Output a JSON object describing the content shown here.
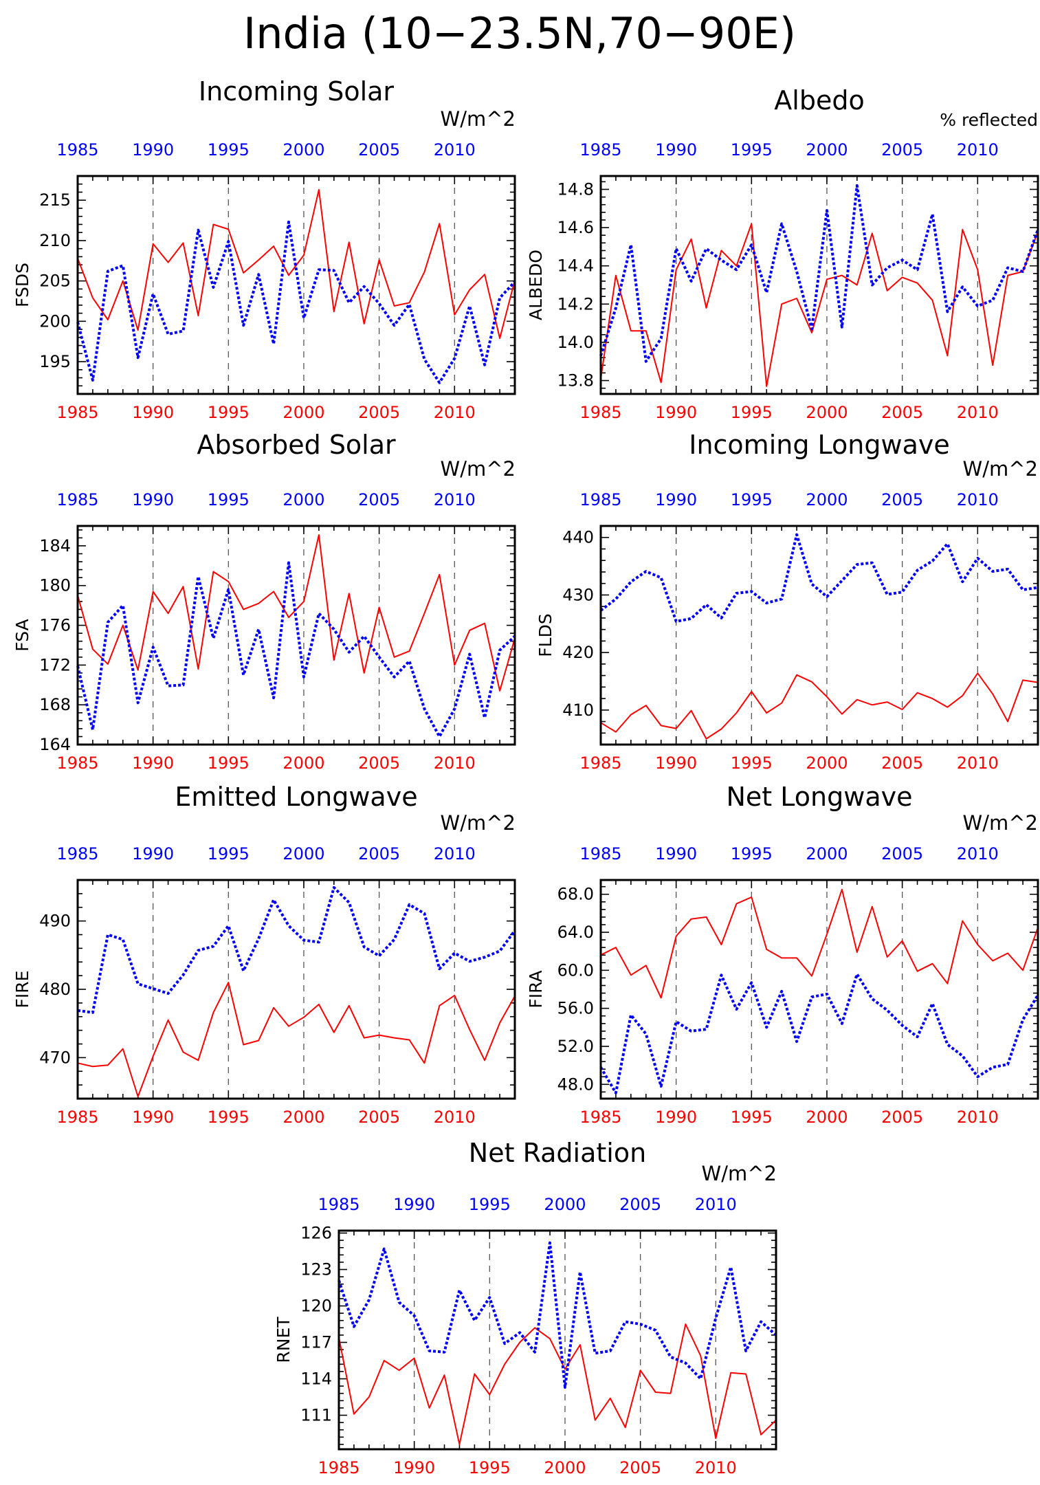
{
  "title": "India (10−23.5N,70−90E)",
  "colors": {
    "red": "#ff0000",
    "blue": "#0000ff",
    "black": "#000000",
    "grid": "#555555"
  },
  "chart_data": [
    {
      "type": "line",
      "title": "Incoming Solar",
      "ylabel": "FSDS",
      "units": "W/m^2",
      "x": [
        1985,
        1986,
        1987,
        1988,
        1989,
        1990,
        1991,
        1992,
        1993,
        1994,
        1995,
        1996,
        1997,
        1998,
        1999,
        2000,
        2001,
        2002,
        2003,
        2004,
        2005,
        2006,
        2007,
        2008,
        2009,
        2010,
        2011,
        2012,
        2013,
        2014
      ],
      "xlim": [
        1985,
        2014
      ],
      "ylim": [
        191,
        218
      ],
      "yticks": [
        195,
        200,
        205,
        210,
        215
      ],
      "ytick_labels": [
        "195",
        "200",
        "205",
        "210",
        "215"
      ],
      "xticks": [
        1985,
        1990,
        1995,
        2000,
        2005,
        2010
      ],
      "xtick_labels": [
        "1985",
        "1990",
        "1995",
        "2000",
        "2005",
        "2010"
      ],
      "series": [
        {
          "color": "red",
          "style": "solid",
          "values": [
            207.8,
            202.9,
            200.2,
            205.0,
            198.9,
            209.6,
            207.3,
            209.7,
            200.7,
            212.0,
            211.4,
            206.0,
            207.6,
            209.3,
            205.7,
            208.2,
            216.3,
            201.2,
            209.8,
            199.7,
            207.6,
            201.9,
            202.3,
            206.1,
            212.1,
            200.8,
            203.9,
            205.8,
            197.9,
            205.1
          ]
        },
        {
          "color": "blue",
          "style": "dotted",
          "values": [
            199.9,
            192.7,
            206.2,
            206.9,
            195.5,
            203.4,
            198.4,
            198.8,
            211.3,
            204.2,
            209.9,
            199.5,
            205.8,
            197.2,
            212.3,
            200.4,
            206.4,
            206.3,
            202.3,
            204.3,
            202.2,
            199.5,
            202.1,
            195.3,
            192.4,
            195.4,
            201.9,
            194.6,
            202.9,
            204.9
          ]
        }
      ]
    },
    {
      "type": "line",
      "title": "Albedo",
      "ylabel": "ALBEDO",
      "units": "% reflected",
      "x": [
        1985,
        1986,
        1987,
        1988,
        1989,
        1990,
        1991,
        1992,
        1993,
        1994,
        1995,
        1996,
        1997,
        1998,
        1999,
        2000,
        2001,
        2002,
        2003,
        2004,
        2005,
        2006,
        2007,
        2008,
        2009,
        2010,
        2011,
        2012,
        2013,
        2014
      ],
      "xlim": [
        1985,
        2014
      ],
      "ylim": [
        13.73,
        14.87
      ],
      "yticks": [
        13.8,
        14.0,
        14.2,
        14.4,
        14.6,
        14.8
      ],
      "ytick_labels": [
        "13.8",
        "14.0",
        "14.2",
        "14.4",
        "14.6",
        "14.8"
      ],
      "xticks": [
        1985,
        1990,
        1995,
        2000,
        2005,
        2010
      ],
      "xtick_labels": [
        "1985",
        "1990",
        "1995",
        "2000",
        "2005",
        "2010"
      ],
      "series": [
        {
          "color": "red",
          "style": "solid",
          "values": [
            13.81,
            14.35,
            14.06,
            14.06,
            13.79,
            14.38,
            14.54,
            14.18,
            14.48,
            14.4,
            14.62,
            13.77,
            14.2,
            14.23,
            14.05,
            14.33,
            14.35,
            14.3,
            14.57,
            14.27,
            14.34,
            14.31,
            14.22,
            13.93,
            14.59,
            14.38,
            13.88,
            14.35,
            14.37,
            14.58
          ]
        },
        {
          "color": "blue",
          "style": "dotted",
          "values": [
            13.93,
            14.18,
            14.51,
            13.9,
            14.02,
            14.49,
            14.32,
            14.49,
            14.43,
            14.38,
            14.51,
            14.26,
            14.62,
            14.37,
            14.07,
            14.69,
            14.08,
            14.82,
            14.3,
            14.39,
            14.43,
            14.38,
            14.67,
            14.16,
            14.29,
            14.19,
            14.22,
            14.39,
            14.37,
            14.59
          ]
        }
      ]
    },
    {
      "type": "line",
      "title": "Absorbed Solar",
      "ylabel": "FSA",
      "units": "W/m^2",
      "x": [
        1985,
        1986,
        1987,
        1988,
        1989,
        1990,
        1991,
        1992,
        1993,
        1994,
        1995,
        1996,
        1997,
        1998,
        1999,
        2000,
        2001,
        2002,
        2003,
        2004,
        2005,
        2006,
        2007,
        2008,
        2009,
        2010,
        2011,
        2012,
        2013,
        2014
      ],
      "xlim": [
        1985,
        2014
      ],
      "ylim": [
        164,
        186
      ],
      "yticks": [
        164,
        168,
        172,
        176,
        180,
        184
      ],
      "ytick_labels": [
        "164",
        "168",
        "172",
        "176",
        "180",
        "184"
      ],
      "xticks": [
        1985,
        1990,
        1995,
        2000,
        2005,
        2010
      ],
      "xtick_labels": [
        "1985",
        "1990",
        "1995",
        "2000",
        "2005",
        "2010"
      ],
      "series": [
        {
          "color": "red",
          "style": "solid",
          "values": [
            179.0,
            173.6,
            172.1,
            176.0,
            171.5,
            179.4,
            177.2,
            179.9,
            171.6,
            181.4,
            180.4,
            177.6,
            178.2,
            179.4,
            176.8,
            178.4,
            185.1,
            172.5,
            179.2,
            171.2,
            177.8,
            172.8,
            173.4,
            177.2,
            181.1,
            172.0,
            175.5,
            176.2,
            169.4,
            174.7
          ]
        },
        {
          "color": "blue",
          "style": "dotted",
          "values": [
            171.9,
            165.5,
            176.3,
            178.0,
            168.2,
            173.8,
            169.9,
            170.0,
            180.9,
            174.7,
            179.6,
            171.0,
            175.6,
            168.7,
            182.3,
            170.8,
            177.2,
            175.6,
            173.3,
            174.9,
            172.8,
            170.8,
            172.4,
            167.6,
            164.8,
            167.6,
            173.1,
            166.7,
            173.5,
            174.9
          ]
        }
      ]
    },
    {
      "type": "line",
      "title": "Incoming Longwave",
      "ylabel": "FLDS",
      "units": "W/m^2",
      "x": [
        1985,
        1986,
        1987,
        1988,
        1989,
        1990,
        1991,
        1992,
        1993,
        1994,
        1995,
        1996,
        1997,
        1998,
        1999,
        2000,
        2001,
        2002,
        2003,
        2004,
        2005,
        2006,
        2007,
        2008,
        2009,
        2010,
        2011,
        2012,
        2013,
        2014
      ],
      "xlim": [
        1985,
        2014
      ],
      "ylim": [
        404,
        442
      ],
      "yticks": [
        410,
        420,
        430,
        440
      ],
      "ytick_labels": [
        "410",
        "420",
        "430",
        "440"
      ],
      "xticks": [
        1985,
        1990,
        1995,
        2000,
        2005,
        2010
      ],
      "xtick_labels": [
        "1985",
        "1990",
        "1995",
        "2000",
        "2005",
        "2010"
      ],
      "series": [
        {
          "color": "red",
          "style": "solid",
          "values": [
            407.8,
            406.2,
            409.2,
            410.8,
            407.3,
            406.8,
            409.9,
            405.0,
            406.7,
            409.5,
            413.2,
            409.5,
            411.2,
            416.1,
            414.9,
            412.3,
            409.3,
            411.8,
            410.9,
            411.4,
            410.1,
            413.0,
            412.0,
            410.5,
            412.5,
            416.4,
            412.8,
            408.0,
            415.2,
            414.8
          ]
        },
        {
          "color": "blue",
          "style": "dotted",
          "values": [
            427.3,
            429.3,
            432.3,
            434.1,
            433.0,
            425.4,
            425.9,
            428.3,
            426.0,
            430.3,
            430.6,
            428.6,
            429.3,
            440.5,
            431.9,
            429.7,
            432.5,
            435.3,
            435.6,
            430.1,
            430.5,
            434.3,
            435.9,
            438.9,
            432.3,
            436.4,
            434.1,
            434.5,
            430.9,
            431.3
          ]
        }
      ]
    },
    {
      "type": "line",
      "title": "Emitted Longwave",
      "ylabel": "FIRE",
      "units": "W/m^2",
      "x": [
        1985,
        1986,
        1987,
        1988,
        1989,
        1990,
        1991,
        1992,
        1993,
        1994,
        1995,
        1996,
        1997,
        1998,
        1999,
        2000,
        2001,
        2002,
        2003,
        2004,
        2005,
        2006,
        2007,
        2008,
        2009,
        2010,
        2011,
        2012,
        2013,
        2014
      ],
      "xlim": [
        1985,
        2014
      ],
      "ylim": [
        464,
        496
      ],
      "yticks": [
        470,
        480,
        490
      ],
      "ytick_labels": [
        "470",
        "480",
        "490"
      ],
      "xticks": [
        1985,
        1990,
        1995,
        2000,
        2005,
        2010
      ],
      "xtick_labels": [
        "1985",
        "1990",
        "1995",
        "2000",
        "2005",
        "2010"
      ],
      "series": [
        {
          "color": "red",
          "style": "solid",
          "values": [
            469.2,
            468.7,
            468.9,
            471.3,
            464.3,
            470.2,
            475.5,
            470.8,
            469.6,
            476.6,
            481.0,
            471.9,
            472.5,
            477.3,
            474.6,
            475.9,
            477.8,
            473.7,
            477.6,
            472.9,
            473.3,
            472.9,
            472.6,
            469.2,
            477.6,
            479.1,
            474.1,
            469.6,
            475.1,
            479.0
          ]
        },
        {
          "color": "blue",
          "style": "dotted",
          "values": [
            476.9,
            476.6,
            488.0,
            487.3,
            480.8,
            480.1,
            479.4,
            482.1,
            485.7,
            486.3,
            489.3,
            482.7,
            487.4,
            493.1,
            489.3,
            487.2,
            486.9,
            494.9,
            492.7,
            486.2,
            484.9,
            487.3,
            492.4,
            491.1,
            483.0,
            485.3,
            484.1,
            484.7,
            485.6,
            488.6
          ]
        }
      ]
    },
    {
      "type": "line",
      "title": "Net Longwave",
      "ylabel": "FIRA",
      "units": "W/m^2",
      "x": [
        1985,
        1986,
        1987,
        1988,
        1989,
        1990,
        1991,
        1992,
        1993,
        1994,
        1995,
        1996,
        1997,
        1998,
        1999,
        2000,
        2001,
        2002,
        2003,
        2004,
        2005,
        2006,
        2007,
        2008,
        2009,
        2010,
        2011,
        2012,
        2013,
        2014
      ],
      "xlim": [
        1985,
        2014
      ],
      "ylim": [
        46.5,
        69.5
      ],
      "yticks": [
        48.0,
        52.0,
        56.0,
        60.0,
        64.0,
        68.0
      ],
      "ytick_labels": [
        "48.0",
        "52.0",
        "56.0",
        "60.0",
        "64.0",
        "68.0"
      ],
      "xticks": [
        1985,
        1990,
        1995,
        2000,
        2005,
        2010
      ],
      "xtick_labels": [
        "1985",
        "1990",
        "1995",
        "2000",
        "2005",
        "2010"
      ],
      "series": [
        {
          "color": "red",
          "style": "solid",
          "values": [
            61.6,
            62.4,
            59.5,
            60.5,
            57.1,
            63.6,
            65.4,
            65.6,
            62.7,
            67.0,
            67.7,
            62.2,
            61.3,
            61.3,
            59.4,
            63.8,
            68.5,
            61.9,
            66.7,
            61.4,
            63.1,
            59.9,
            60.7,
            58.6,
            65.2,
            62.7,
            61.0,
            61.8,
            60.0,
            64.5
          ]
        },
        {
          "color": "blue",
          "style": "dotted",
          "values": [
            49.8,
            47.1,
            55.3,
            53.3,
            47.8,
            54.6,
            53.6,
            53.8,
            59.5,
            55.9,
            58.7,
            54.0,
            57.8,
            52.5,
            57.2,
            57.5,
            54.4,
            59.6,
            57.0,
            55.8,
            54.2,
            53.0,
            56.5,
            52.2,
            51.0,
            48.8,
            49.8,
            50.1,
            54.8,
            57.4
          ]
        }
      ]
    },
    {
      "type": "line",
      "title": "Net Radiation",
      "ylabel": "RNET",
      "units": "W/m^2",
      "x": [
        1985,
        1986,
        1987,
        1988,
        1989,
        1990,
        1991,
        1992,
        1993,
        1994,
        1995,
        1996,
        1997,
        1998,
        1999,
        2000,
        2001,
        2002,
        2003,
        2004,
        2005,
        2006,
        2007,
        2008,
        2009,
        2010,
        2011,
        2012,
        2013,
        2014
      ],
      "xlim": [
        1985,
        2014
      ],
      "ylim": [
        108.2,
        126.2
      ],
      "yticks": [
        111,
        114,
        117,
        120,
        123,
        126
      ],
      "ytick_labels": [
        "111",
        "114",
        "117",
        "120",
        "123",
        "126"
      ],
      "xticks": [
        1985,
        1990,
        1995,
        2000,
        2005,
        2010
      ],
      "xtick_labels": [
        "1985",
        "1990",
        "1995",
        "2000",
        "2005",
        "2010"
      ],
      "series": [
        {
          "color": "red",
          "style": "solid",
          "values": [
            117.4,
            111.1,
            112.5,
            115.5,
            114.7,
            115.7,
            111.6,
            114.3,
            108.6,
            114.4,
            112.7,
            115.2,
            117.0,
            118.2,
            117.3,
            114.8,
            116.8,
            110.6,
            112.4,
            110.0,
            114.7,
            112.9,
            112.8,
            118.5,
            115.9,
            109.1,
            114.5,
            114.4,
            109.4,
            110.6
          ]
        },
        {
          "color": "blue",
          "style": "dotted",
          "values": [
            122.1,
            118.3,
            120.5,
            124.7,
            120.3,
            119.2,
            116.3,
            116.2,
            121.3,
            118.8,
            120.7,
            116.9,
            117.8,
            116.2,
            125.2,
            113.3,
            122.8,
            116.1,
            116.3,
            118.7,
            118.5,
            118.0,
            115.8,
            115.3,
            114.0,
            119.0,
            123.2,
            116.3,
            118.7,
            117.6
          ]
        }
      ]
    }
  ]
}
